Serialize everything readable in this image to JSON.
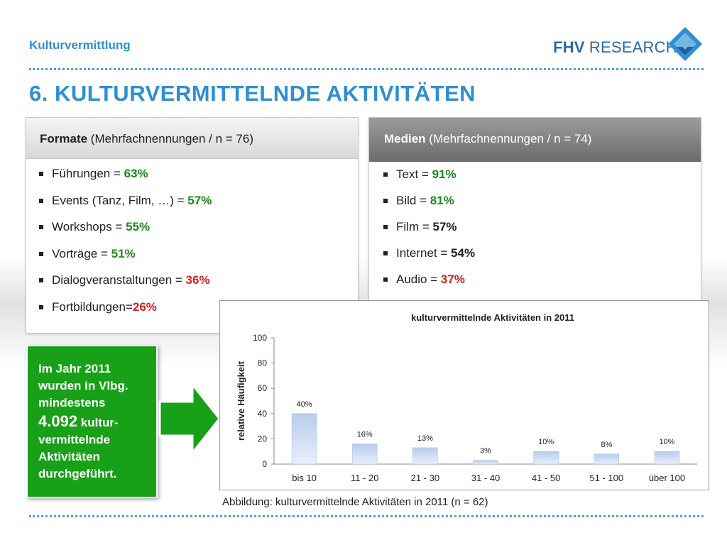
{
  "header": {
    "section_label": "Kulturvermittlung",
    "logo": {
      "brand": "FHV",
      "word": "RESEARCH",
      "icon": "fhv-diamond-logo-icon"
    },
    "title": "6. KULTURVERMITTELNDE AKTIVITÄTEN"
  },
  "formate": {
    "heading_bold": "Formate",
    "heading_rest": " (Mehrfachnennungen / n = 76)",
    "items": [
      {
        "label": "Führungen = ",
        "value": "63%",
        "color": "green"
      },
      {
        "label": "Events (Tanz, Film, …) = ",
        "value": "57%",
        "color": "green"
      },
      {
        "label": "Workshops = ",
        "value": "55%",
        "color": "green"
      },
      {
        "label": "Vorträge = ",
        "value": "51%",
        "color": "green"
      },
      {
        "label": "Dialogveranstaltungen = ",
        "value": "36%",
        "color": "red"
      },
      {
        "label": "Fortbildungen=",
        "value": "26%",
        "color": "red"
      }
    ]
  },
  "medien": {
    "heading_bold": "Medien",
    "heading_rest": " (Mehrfachnennungen / n = 74)",
    "items": [
      {
        "label": "Text = ",
        "value": "91%",
        "color": "green"
      },
      {
        "label": "Bild = ",
        "value": "81%",
        "color": "green"
      },
      {
        "label": "Film = ",
        "value": "57%",
        "color": "black"
      },
      {
        "label": "Internet = ",
        "value": "54%",
        "color": "black"
      },
      {
        "label": "Audio = ",
        "value": "37%",
        "color": "red"
      }
    ]
  },
  "callout": {
    "line1": "Im Jahr 2011 wurden in Vlbg. mindestens",
    "number": "4.092",
    "line2": " kultur-vermittelnde Aktivitäten durchgeführt."
  },
  "chart_data": {
    "type": "bar",
    "title": "kulturvermittelnde Aktivitäten in 2011",
    "ylabel": "relative Häufigkeit",
    "xlabel": "",
    "ylim": [
      0,
      100
    ],
    "yticks": [
      0,
      20,
      40,
      60,
      80,
      100
    ],
    "categories": [
      "bis 10",
      "11 - 20",
      "21 - 30",
      "31 - 40",
      "41 - 50",
      "51 - 100",
      "über 100"
    ],
    "values": [
      40,
      16,
      13,
      3,
      10,
      8,
      10
    ],
    "data_labels": [
      "40%",
      "16%",
      "13%",
      "3%",
      "10%",
      "8%",
      "10%"
    ],
    "grid": false,
    "bar_color": "#b9cdee"
  },
  "caption": "Abbildung: kulturvermittelnde Aktivitäten in 2011 (n = 62)",
  "colors": {
    "accent": "#2e8fd1",
    "green": "#1a8a1a",
    "red": "#d42020",
    "callout": "#18a018"
  }
}
